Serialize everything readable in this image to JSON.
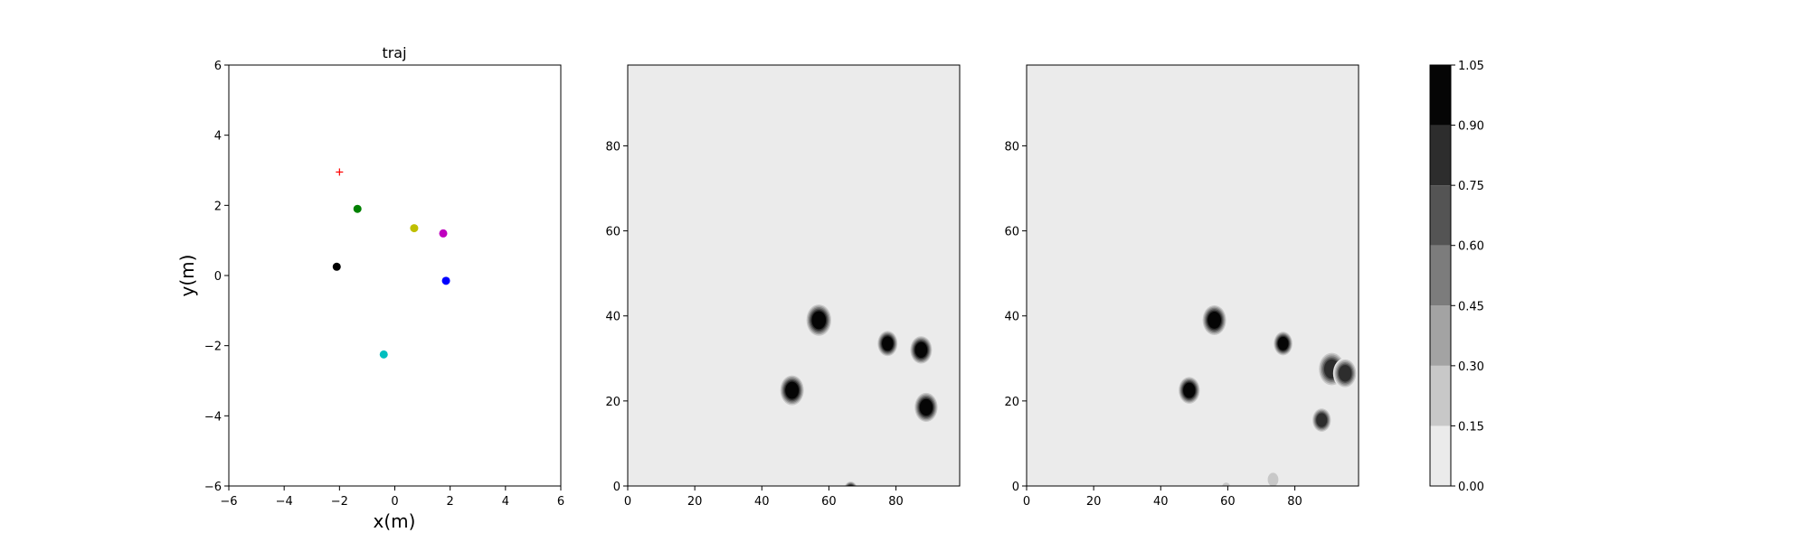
{
  "chart_data": [
    {
      "type": "scatter",
      "title": "traj",
      "xlabel": "x(m)",
      "ylabel": "y(m)",
      "xlim": [
        -6,
        6
      ],
      "ylim": [
        -6,
        6
      ],
      "xticks": [
        -6,
        -4,
        -2,
        0,
        2,
        4,
        6
      ],
      "yticks": [
        -6,
        -4,
        -2,
        0,
        2,
        4,
        6
      ],
      "grid": false,
      "points": [
        {
          "x": -2.0,
          "y": 2.95,
          "color": "#ff0000",
          "marker": "plus"
        },
        {
          "x": -1.35,
          "y": 1.9,
          "color": "#008000",
          "marker": "circle"
        },
        {
          "x": 0.7,
          "y": 1.35,
          "color": "#bfbf00",
          "marker": "circle"
        },
        {
          "x": 1.75,
          "y": 1.2,
          "color": "#bf00bf",
          "marker": "circle"
        },
        {
          "x": -2.1,
          "y": 0.25,
          "color": "#000000",
          "marker": "circle"
        },
        {
          "x": 1.85,
          "y": -0.15,
          "color": "#0000ff",
          "marker": "circle"
        },
        {
          "x": -0.4,
          "y": -2.25,
          "color": "#00bfbf",
          "marker": "circle"
        }
      ]
    },
    {
      "type": "heatmap",
      "xlim": [
        0,
        99
      ],
      "ylim": [
        0,
        99
      ],
      "xticks": [
        0,
        20,
        40,
        60,
        80
      ],
      "yticks": [
        0,
        20,
        40,
        60,
        80
      ],
      "background_level": 0.0,
      "blobs": [
        {
          "x": 57,
          "y": 39,
          "r": 4,
          "level": 1.0
        },
        {
          "x": 49,
          "y": 22.5,
          "r": 3.8,
          "level": 1.0
        },
        {
          "x": 77.5,
          "y": 33.5,
          "r": 3.2,
          "level": 1.0
        },
        {
          "x": 87.5,
          "y": 32,
          "r": 3.5,
          "level": 1.0
        },
        {
          "x": 89,
          "y": 18.5,
          "r": 3.7,
          "level": 1.0
        },
        {
          "x": 66.5,
          "y": -1,
          "r": 2.2,
          "level": 1.0
        }
      ]
    },
    {
      "type": "heatmap",
      "xlim": [
        0,
        99
      ],
      "ylim": [
        0,
        99
      ],
      "xticks": [
        0,
        20,
        40,
        60,
        80
      ],
      "yticks": [
        0,
        20,
        40,
        60,
        80
      ],
      "background_level": 0.0,
      "blobs": [
        {
          "x": 56,
          "y": 39,
          "r": 3.8,
          "level": 1.0
        },
        {
          "x": 48.5,
          "y": 22.5,
          "r": 3.4,
          "level": 1.0
        },
        {
          "x": 76.5,
          "y": 33.5,
          "r": 3.0,
          "level": 1.0
        },
        {
          "x": 88,
          "y": 15.5,
          "r": 3.0,
          "level": 0.95
        },
        {
          "x": 91,
          "y": 27.5,
          "r": 4.2,
          "level": 0.85
        },
        {
          "x": 95,
          "y": 26.5,
          "r": 3.6,
          "level": 0.95
        },
        {
          "x": 87.5,
          "y": 35,
          "r": 1.2,
          "level": 0.2
        },
        {
          "x": 73.5,
          "y": 1.5,
          "r": 2.2,
          "level": 0.35
        },
        {
          "x": 59.5,
          "y": -0.5,
          "r": 1.8,
          "level": 0.25
        }
      ]
    },
    {
      "type": "colorbar",
      "levels": [
        0.0,
        0.15,
        0.3,
        0.45,
        0.6,
        0.75,
        0.9,
        1.05
      ],
      "tick_labels": [
        "0.00",
        "0.15",
        "0.30",
        "0.45",
        "0.60",
        "0.75",
        "0.90",
        "1.05"
      ],
      "colors": [
        "#ebebeb",
        "#c8c8c8",
        "#a3a3a3",
        "#7c7c7c",
        "#545454",
        "#2d2d2d",
        "#050505"
      ]
    }
  ]
}
